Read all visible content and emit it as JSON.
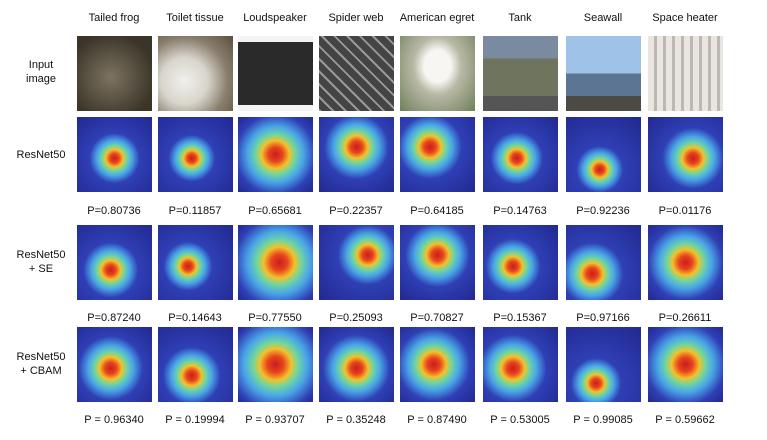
{
  "columns": [
    "Tailed frog",
    "Toilet tissue",
    "Loudspeaker",
    "Spider web",
    "American egret",
    "Tank",
    "Seawall",
    "Space heater"
  ],
  "rows": [
    {
      "label_line1": "Input",
      "label_line2": "image"
    },
    {
      "label_line1": "ResNet50",
      "label_line2": "",
      "probabilities": [
        "P=0.80736",
        "P=0.11857",
        "P=0.65681",
        "P=0.22357",
        "P=0.64185",
        "P=0.14763",
        "P=0.92236",
        "P=0.01176"
      ]
    },
    {
      "label_line1": "ResNet50",
      "label_line2": "+ SE",
      "probabilities": [
        "P=0.87240",
        "P=0.14643",
        "P=0.77550",
        "P=0.25093",
        "P=0.70827",
        "P=0.15367",
        "P=0.97166",
        "P=0.26611"
      ]
    },
    {
      "label_line1": "ResNet50",
      "label_line2": "+ CBAM",
      "probabilities": [
        "P = 0.96340",
        "P = 0.19994",
        "P = 0.93707",
        "P = 0.35248",
        "P = 0.87490",
        "P = 0.53005",
        "P = 0.99085",
        "P = 0.59662"
      ]
    }
  ]
}
